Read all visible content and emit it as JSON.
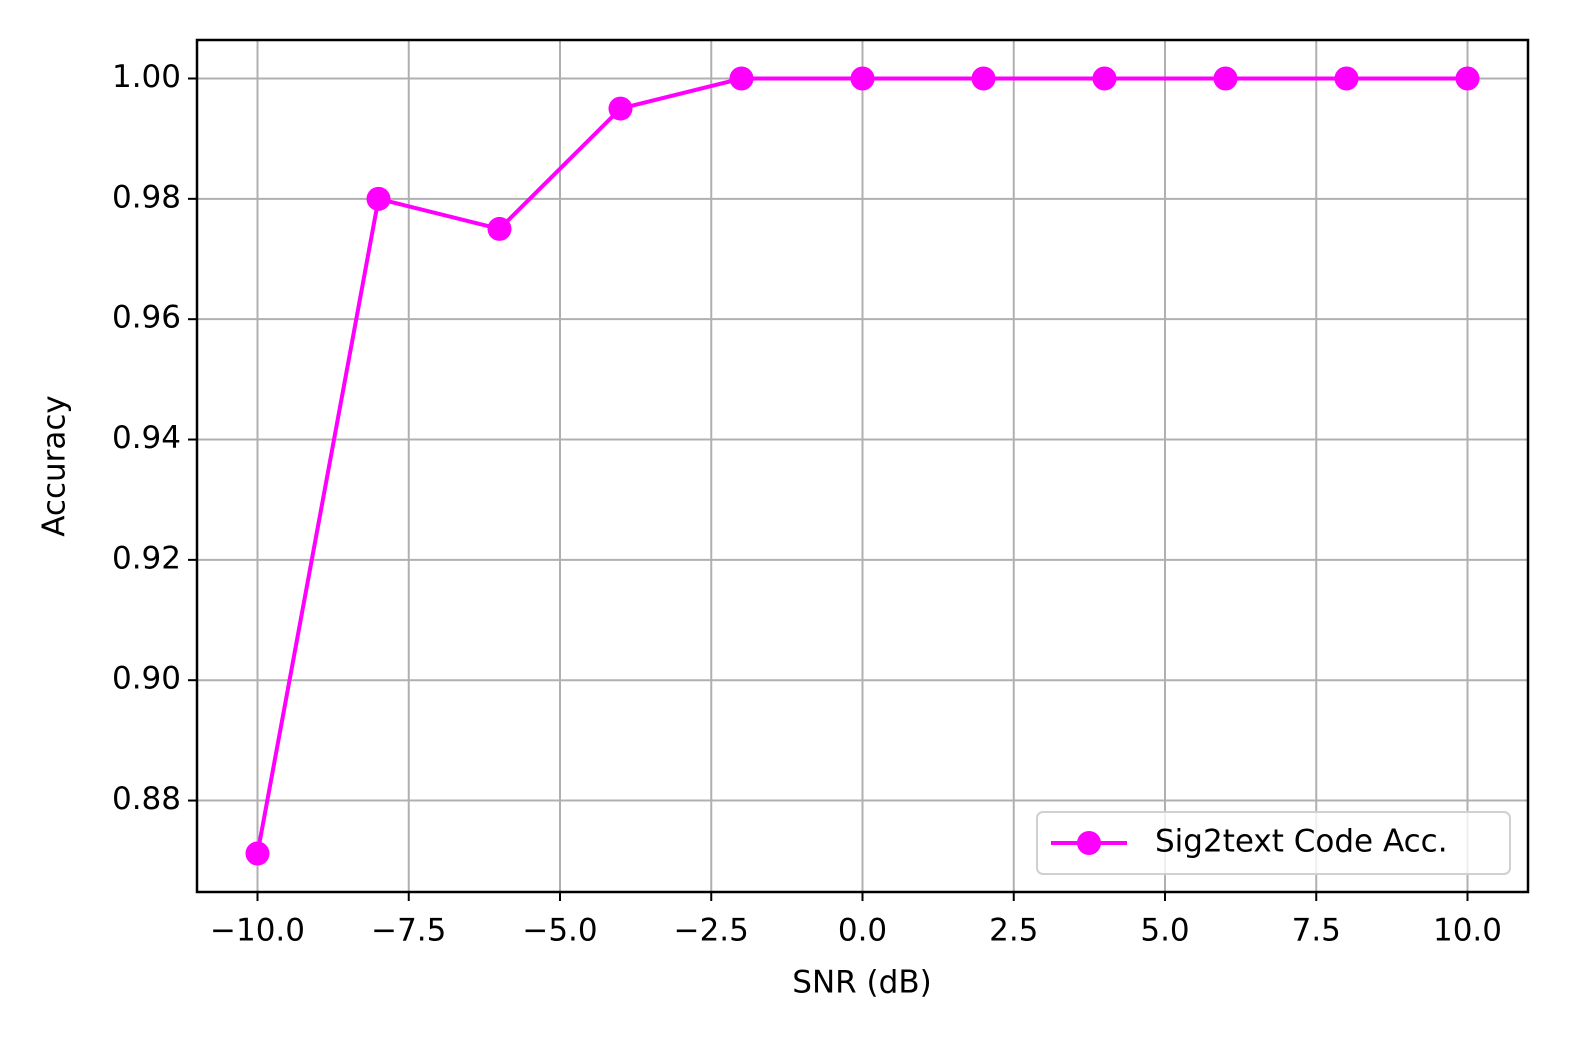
{
  "chart_data": {
    "type": "line",
    "x_label": "SNR (dB)",
    "y_label": "Accuracy",
    "x": [
      -10,
      -8,
      -6,
      -4,
      -2,
      0,
      2,
      4,
      6,
      8,
      10
    ],
    "series": [
      {
        "name": "Sig2text Code Acc.",
        "color": "#ff00ff",
        "values": [
          0.8712,
          0.98,
          0.975,
          0.995,
          1.0,
          1.0,
          1.0,
          1.0,
          1.0,
          1.0,
          1.0
        ]
      }
    ],
    "xlim": [
      -11,
      11
    ],
    "xticks": [
      {
        "value": -10,
        "label": "−10.0"
      },
      {
        "value": -7.5,
        "label": "−7.5"
      },
      {
        "value": -5,
        "label": "−5.0"
      },
      {
        "value": -2.5,
        "label": "−2.5"
      },
      {
        "value": 0,
        "label": "0.0"
      },
      {
        "value": 2.5,
        "label": "2.5"
      },
      {
        "value": 5,
        "label": "5.0"
      },
      {
        "value": 7.5,
        "label": "7.5"
      },
      {
        "value": 10,
        "label": "10.0"
      }
    ],
    "ylim": [
      0.8648,
      1.0064
    ],
    "yticks": [
      {
        "value": 0.88,
        "label": "0.88"
      },
      {
        "value": 0.9,
        "label": "0.90"
      },
      {
        "value": 0.92,
        "label": "0.92"
      },
      {
        "value": 0.94,
        "label": "0.94"
      },
      {
        "value": 0.96,
        "label": "0.96"
      },
      {
        "value": 0.98,
        "label": "0.98"
      },
      {
        "value": 1.0,
        "label": "1.00"
      }
    ],
    "grid": true,
    "legend_position": "lower right"
  }
}
